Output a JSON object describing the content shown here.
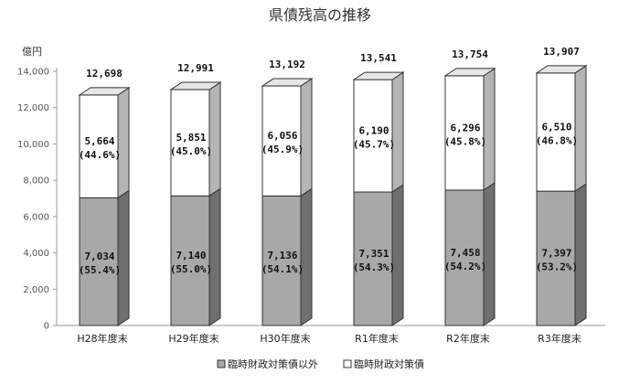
{
  "chart_data": {
    "type": "bar",
    "stacked": true,
    "title": "県債残高の推移",
    "unit_label": "億円",
    "categories": [
      "H28年度末",
      "H29年度末",
      "H30年度末",
      "R1年度末",
      "R2年度末",
      "R3年度末"
    ],
    "series": [
      {
        "name": "臨時財政対策債以外",
        "values": [
          7034,
          7140,
          7136,
          7351,
          7458,
          7397
        ],
        "value_labels": [
          "7,034",
          "7,140",
          "7,136",
          "7,351",
          "7,458",
          "7,397"
        ],
        "percent_labels": [
          "(55.4%)",
          "(55.0%)",
          "(54.1%)",
          "(54.3%)",
          "(54.2%)",
          "(53.2%)"
        ],
        "color": "#a8a8a8",
        "side_color": "#6f6f6f",
        "top_color": "#c4c4c4"
      },
      {
        "name": "臨時財政対策債",
        "values": [
          5664,
          5851,
          6056,
          6190,
          6296,
          6510
        ],
        "value_labels": [
          "5,664",
          "5,851",
          "6,056",
          "6,190",
          "6,296",
          "6,510"
        ],
        "percent_labels": [
          "(44.6%)",
          "(45.0%)",
          "(45.9%)",
          "(45.7%)",
          "(45.8%)",
          "(46.8%)"
        ],
        "color": "#ffffff",
        "side_color": "#b5b5b5",
        "top_color": "#e6e6e6"
      }
    ],
    "totals": [
      12698,
      12991,
      13192,
      13541,
      13754,
      13907
    ],
    "total_labels": [
      "12,698",
      "12,991",
      "13,192",
      "13,541",
      "13,754",
      "13,907"
    ],
    "ylim": [
      0,
      14000
    ],
    "yticks": [
      0,
      2000,
      4000,
      6000,
      8000,
      10000,
      12000,
      14000
    ],
    "ytick_labels": [
      "0",
      "2,000",
      "4,000",
      "6,000",
      "8,000",
      "10,000",
      "12,000",
      "14,000"
    ],
    "legend": [
      "臨時財政対策債以外",
      "臨時財政対策債"
    ],
    "legend_position": "bottom",
    "grid": false,
    "bar_style": "3d"
  }
}
